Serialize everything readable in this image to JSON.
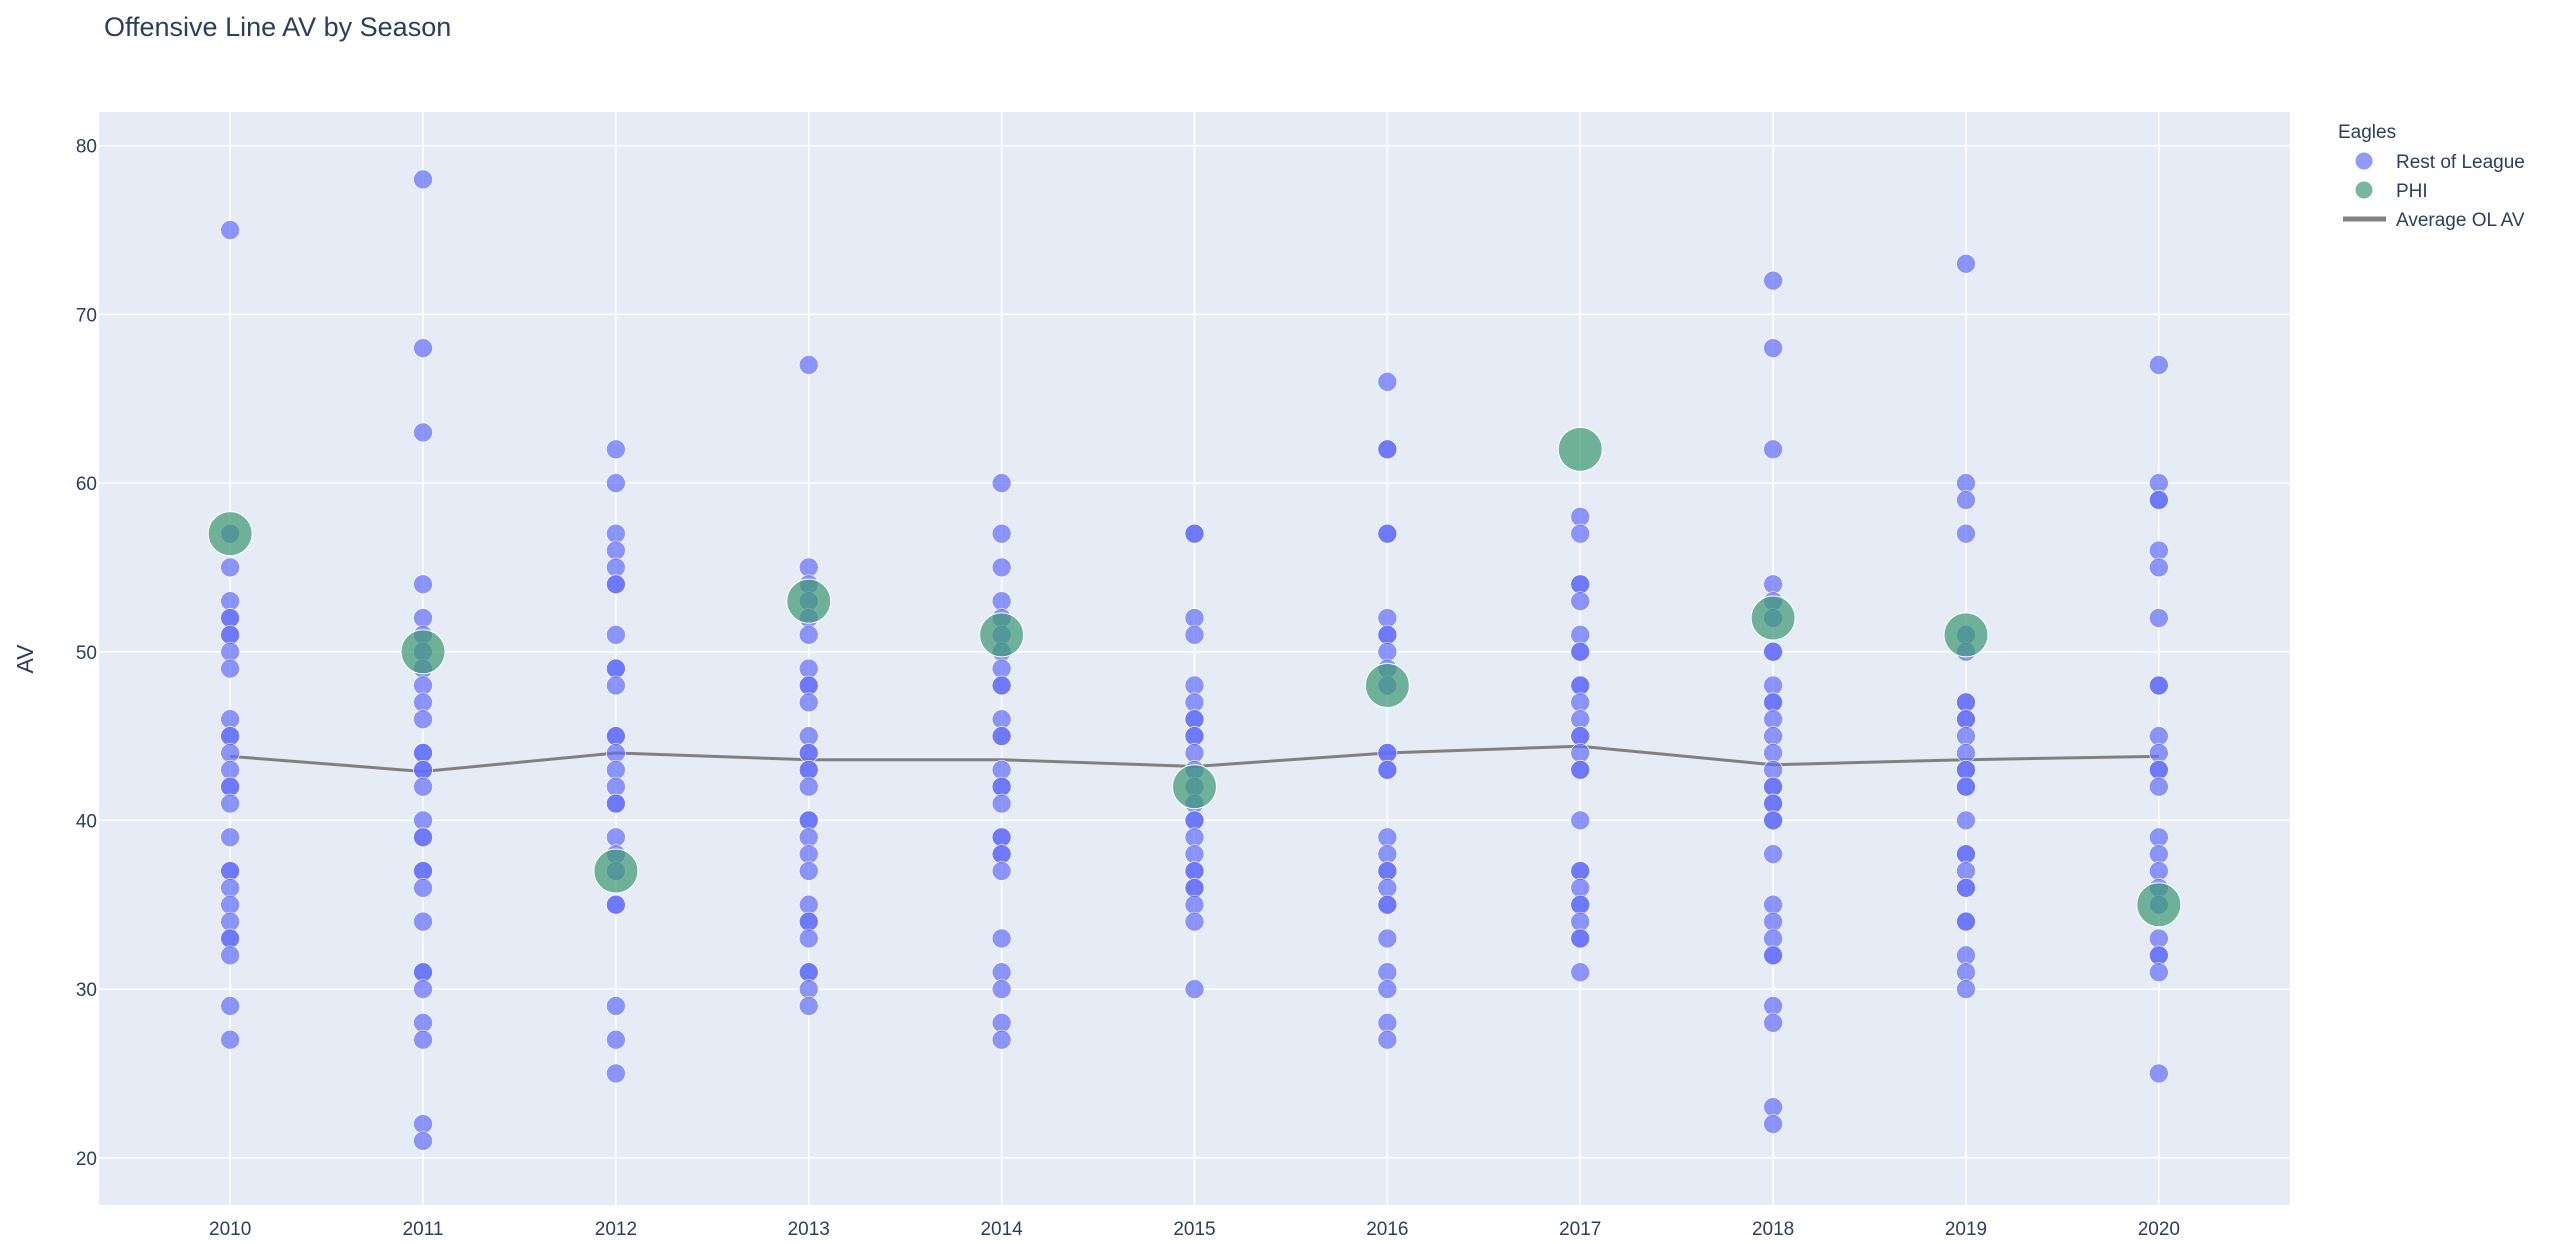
{
  "chart_data": {
    "type": "scatter",
    "title": "Offensive Line AV by Season",
    "xlabel": "",
    "ylabel": "AV",
    "x_ticks": [
      "2010",
      "2011",
      "2012",
      "2013",
      "2014",
      "2015",
      "2016",
      "2017",
      "2018",
      "2019",
      "2020"
    ],
    "y_ticks": [
      "20",
      "30",
      "40",
      "50",
      "60",
      "70",
      "80"
    ],
    "xlim": [
      2009.32,
      2020.68
    ],
    "ylim": [
      17.2,
      82.0
    ],
    "grid": true,
    "legend": {
      "title": "Eagles",
      "placement": "top-right",
      "entries": [
        "Rest of League",
        "PHI",
        "Average OL AV"
      ]
    },
    "colors": {
      "rest_of_league": "#636efa",
      "phi": "#3d9970",
      "average": "#808080",
      "plot_background": "#e5ecf6",
      "text": "#2a3f5f"
    },
    "series": [
      {
        "name": "Rest of League",
        "mode": "markers",
        "points": [
          {
            "x": 2010,
            "y": [
              75,
              57,
              55,
              53,
              52,
              52,
              51,
              51,
              50,
              49,
              46,
              45,
              45,
              44,
              43,
              42,
              42,
              41,
              39,
              37,
              37,
              36,
              35,
              34,
              33,
              33,
              32,
              29,
              27
            ]
          },
          {
            "x": 2011,
            "y": [
              78,
              68,
              63,
              54,
              52,
              51,
              50,
              49,
              48,
              47,
              46,
              44,
              44,
              43,
              43,
              42,
              40,
              39,
              39,
              37,
              37,
              36,
              34,
              31,
              31,
              30,
              28,
              27,
              22,
              21
            ]
          },
          {
            "x": 2012,
            "y": [
              62,
              60,
              57,
              56,
              55,
              54,
              54,
              51,
              49,
              49,
              48,
              45,
              45,
              44,
              43,
              42,
              41,
              41,
              39,
              38,
              37,
              35,
              35,
              29,
              27,
              25
            ]
          },
          {
            "x": 2013,
            "y": [
              67,
              55,
              54,
              53,
              52,
              51,
              49,
              48,
              48,
              47,
              45,
              44,
              44,
              43,
              43,
              42,
              40,
              40,
              39,
              38,
              37,
              35,
              34,
              34,
              33,
              31,
              31,
              30,
              29
            ]
          },
          {
            "x": 2014,
            "y": [
              60,
              57,
              55,
              53,
              52,
              51,
              50,
              49,
              48,
              48,
              46,
              45,
              45,
              43,
              42,
              42,
              41,
              39,
              39,
              38,
              38,
              37,
              33,
              31,
              30,
              28,
              27
            ]
          },
          {
            "x": 2015,
            "y": [
              57,
              57,
              52,
              51,
              48,
              47,
              46,
              46,
              45,
              45,
              44,
              43,
              42,
              41,
              40,
              40,
              39,
              38,
              37,
              37,
              36,
              36,
              35,
              34,
              30
            ]
          },
          {
            "x": 2016,
            "y": [
              66,
              62,
              62,
              57,
              57,
              52,
              51,
              51,
              50,
              49,
              48,
              44,
              44,
              43,
              43,
              39,
              38,
              37,
              37,
              36,
              35,
              35,
              33,
              31,
              30,
              28,
              27
            ]
          },
          {
            "x": 2017,
            "y": [
              58,
              57,
              54,
              54,
              53,
              51,
              50,
              50,
              48,
              48,
              47,
              46,
              45,
              45,
              44,
              43,
              43,
              40,
              37,
              37,
              36,
              35,
              35,
              34,
              33,
              33,
              31
            ]
          },
          {
            "x": 2018,
            "y": [
              72,
              68,
              62,
              54,
              53,
              52,
              50,
              50,
              48,
              47,
              47,
              46,
              45,
              44,
              43,
              42,
              42,
              41,
              41,
              40,
              40,
              38,
              35,
              34,
              33,
              32,
              32,
              29,
              28,
              23,
              22
            ]
          },
          {
            "x": 2019,
            "y": [
              73,
              60,
              59,
              57,
              51,
              50,
              47,
              47,
              46,
              46,
              45,
              44,
              43,
              43,
              42,
              42,
              40,
              38,
              38,
              37,
              36,
              36,
              34,
              34,
              32,
              31,
              30
            ]
          },
          {
            "x": 2020,
            "y": [
              67,
              60,
              59,
              59,
              56,
              55,
              52,
              48,
              48,
              45,
              44,
              43,
              43,
              42,
              39,
              38,
              37,
              36,
              35,
              33,
              32,
              32,
              31,
              25
            ]
          }
        ]
      },
      {
        "name": "PHI",
        "mode": "markers",
        "x": [
          2010,
          2011,
          2012,
          2013,
          2014,
          2015,
          2016,
          2017,
          2018,
          2019,
          2020
        ],
        "y": [
          57,
          50,
          37,
          53,
          51,
          42,
          48,
          62,
          52,
          51,
          35
        ]
      },
      {
        "name": "Average OL AV",
        "mode": "lines",
        "x": [
          2010,
          2011,
          2012,
          2013,
          2014,
          2015,
          2016,
          2017,
          2018,
          2019,
          2020
        ],
        "y": [
          43.8,
          42.9,
          44.0,
          43.6,
          43.6,
          43.2,
          44.0,
          44.4,
          43.3,
          43.6,
          43.8
        ]
      }
    ]
  }
}
